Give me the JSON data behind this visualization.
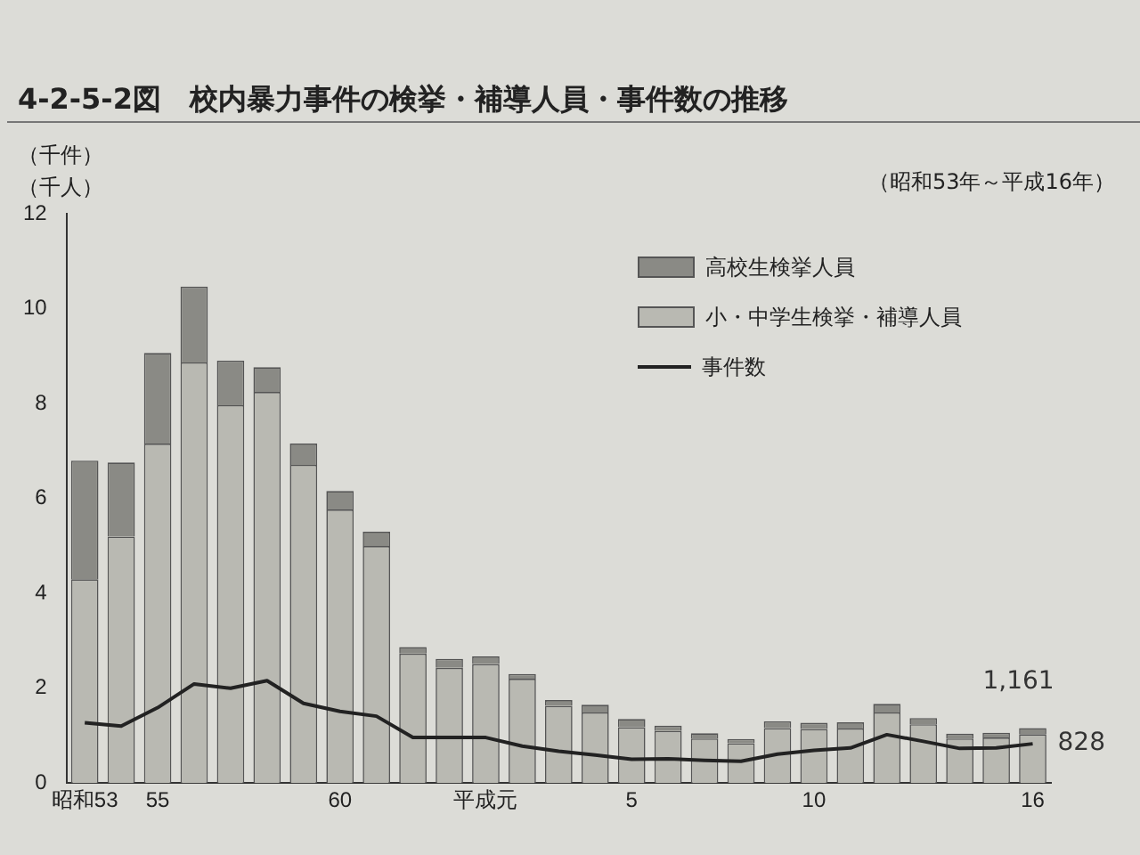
{
  "chart_data": {
    "type": "bar",
    "stacked": true,
    "title": "4-2-5-2図　校内暴力事件の検挙・補導人員・事件数の推移",
    "subtitle": "（昭和53年～平成16年）",
    "ylabel": "（千件）（千人）",
    "categories": [
      "昭和53",
      null,
      "55",
      null,
      null,
      null,
      null,
      "60",
      null,
      null,
      null,
      "平成元",
      null,
      null,
      null,
      "5",
      null,
      null,
      null,
      null,
      "10",
      null,
      null,
      null,
      null,
      null,
      "16"
    ],
    "series": [
      {
        "name": "小・中学生検挙・補導人員",
        "color": "#b9b9b2",
        "values": [
          4.3,
          5.2,
          7.16,
          8.87,
          7.97,
          8.25,
          6.71,
          5.77,
          5.0,
          2.73,
          2.43,
          2.51,
          2.2,
          1.63,
          1.49,
          1.18,
          1.1,
          0.94,
          0.84,
          1.16,
          1.14,
          1.15,
          1.49,
          1.24,
          0.94,
          0.96,
          1.03
        ]
      },
      {
        "name": "高校生検挙人員",
        "color": "#8a8a85",
        "values": [
          2.5,
          1.56,
          1.91,
          1.6,
          0.94,
          0.52,
          0.45,
          0.39,
          0.3,
          0.14,
          0.19,
          0.16,
          0.1,
          0.12,
          0.16,
          0.17,
          0.11,
          0.11,
          0.09,
          0.14,
          0.13,
          0.13,
          0.18,
          0.13,
          0.1,
          0.1,
          0.13
        ]
      },
      {
        "name": "事件数",
        "type": "line",
        "color": "#222222",
        "values": [
          1.27,
          1.2,
          1.59,
          2.09,
          2.0,
          2.16,
          1.68,
          1.51,
          1.41,
          0.96,
          0.96,
          0.96,
          0.78,
          0.67,
          0.59,
          0.5,
          0.51,
          0.48,
          0.46,
          0.61,
          0.69,
          0.74,
          1.02,
          0.88,
          0.73,
          0.74,
          0.828
        ]
      }
    ],
    "ylim": [
      0,
      12
    ],
    "yticks": [
      0,
      2,
      4,
      6,
      8,
      10,
      12
    ],
    "grid": false,
    "legend": "top right",
    "marker": "none",
    "annotations": [
      {
        "text": "1,161",
        "x": "16",
        "y": 1.161
      },
      {
        "text": "828",
        "x": "16",
        "y": 0.828
      }
    ]
  }
}
